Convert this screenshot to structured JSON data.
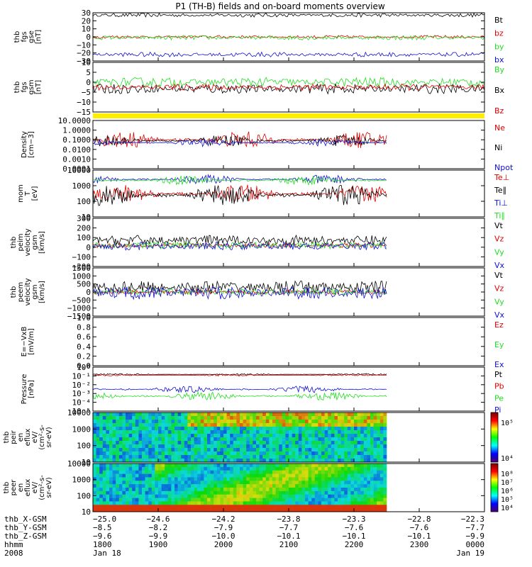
{
  "title": "P1 (TH-B) fields and on-board moments overview",
  "colors": {
    "black": "#000000",
    "red": "#e00000",
    "green": "#22dd22",
    "blue": "#1010d0",
    "yellow": "#ffee00"
  },
  "chart_data": [
    {
      "type": "line",
      "id": "p1",
      "ylabel": [
        "thb",
        "fgs",
        "gse",
        "[nT]"
      ],
      "yticks": [
        "30",
        "20",
        "10",
        "0",
        "−10",
        "−20",
        "−30"
      ],
      "ylim": [
        -30,
        30
      ],
      "series": [
        {
          "name": "Bt",
          "color": "black",
          "base": 27,
          "amp": 2.5
        },
        {
          "name": "bz",
          "color": "red",
          "base": 0,
          "amp": 2
        },
        {
          "name": "by",
          "color": "green",
          "base": -1,
          "amp": 3
        },
        {
          "name": "bx",
          "color": "blue",
          "base": -22,
          "amp": 3
        }
      ]
    },
    {
      "type": "line",
      "id": "p2",
      "ylabel": [
        "thb",
        "fgs",
        "gsm",
        "[nT]"
      ],
      "yticks": [
        "10",
        "5",
        "0",
        "−5",
        "−10",
        "−15"
      ],
      "ylim": [
        -18,
        12
      ],
      "series": [
        {
          "name": "By",
          "color": "green",
          "base": 0,
          "amp": 3
        },
        {
          "name": "Bx",
          "color": "black",
          "base": -4,
          "amp": 3
        },
        {
          "name": "Bz",
          "color": "red",
          "base": -3,
          "amp": 2
        }
      ]
    },
    {
      "type": "line",
      "id": "p3",
      "log": true,
      "ylabel": [
        "Density",
        "[cm−3]"
      ],
      "yticks": [
        "10.0000",
        "1.0000",
        "0.1000",
        "0.0100",
        "0.0010",
        "0.0001"
      ],
      "ylim": [
        0.0001,
        10
      ],
      "series": [
        {
          "name": "Ne",
          "color": "red",
          "base": 0.1,
          "amp": 0.9
        },
        {
          "name": "Ni",
          "color": "black",
          "base": 0.08,
          "amp": 0.6
        },
        {
          "name": "Npot",
          "color": "blue",
          "base": 0.05,
          "amp": 0.4
        }
      ]
    },
    {
      "type": "line",
      "id": "p4",
      "log": true,
      "ylabel": [
        "mom",
        "T",
        "[eV]"
      ],
      "yticks": [
        "10000",
        "1000",
        "100",
        "10"
      ],
      "ylim": [
        10,
        10000
      ],
      "series": [
        {
          "name": "Te⊥",
          "color": "red",
          "base": 300,
          "amp": 0.6
        },
        {
          "name": "Te∥",
          "color": "black",
          "base": 250,
          "amp": 0.7
        },
        {
          "name": "Ti⊥",
          "color": "blue",
          "base": 2500,
          "amp": 0.3
        },
        {
          "name": "Ti∥",
          "color": "green",
          "base": 2200,
          "amp": 0.3
        }
      ]
    },
    {
      "type": "line",
      "id": "p5",
      "ylabel": [
        "thb",
        "peim",
        "velocity",
        "gsm",
        "[km/s]"
      ],
      "yticks": [
        "300",
        "200",
        "100",
        "0",
        "−100",
        "−200"
      ],
      "ylim": [
        -250,
        320
      ],
      "series": [
        {
          "name": "Vt",
          "color": "black",
          "base": 60,
          "amp": 60
        },
        {
          "name": "Vz",
          "color": "red",
          "base": 0,
          "amp": 30
        },
        {
          "name": "Vy",
          "color": "green",
          "base": 0,
          "amp": 40
        },
        {
          "name": "Vx",
          "color": "blue",
          "base": -10,
          "amp": 50
        }
      ]
    },
    {
      "type": "line",
      "id": "p6",
      "ylabel": [
        "thb",
        "peem",
        "velocity",
        "gsm",
        "[km/s]"
      ],
      "yticks": [
        "1500",
        "1000",
        "500",
        "0",
        "−500",
        "−1000",
        "−1500"
      ],
      "ylim": [
        -1500,
        1500
      ],
      "series": [
        {
          "name": "Vt",
          "color": "black",
          "base": 300,
          "amp": 400
        },
        {
          "name": "Vz",
          "color": "red",
          "base": 0,
          "amp": 150
        },
        {
          "name": "Vy",
          "color": "green",
          "base": 0,
          "amp": 200
        },
        {
          "name": "Vx",
          "color": "blue",
          "base": -50,
          "amp": 400
        }
      ]
    },
    {
      "type": "line",
      "id": "p7",
      "ylabel": [
        "E=−VxB",
        "[mV/m]"
      ],
      "yticks": [
        "1.0",
        "0.8",
        "0.6",
        "0.4",
        "0.2",
        "0.0"
      ],
      "ylim": [
        0,
        1
      ],
      "series": [
        {
          "name": "Ez",
          "color": "red"
        },
        {
          "name": "Ey",
          "color": "green"
        },
        {
          "name": "Ex",
          "color": "blue"
        }
      ]
    },
    {
      "type": "line",
      "id": "p8",
      "log": true,
      "ylabel": [
        "Pressure",
        "[nPa]"
      ],
      "yticks": [
        "10⁰",
        "10⁻¹",
        "10⁻²",
        "10⁻³",
        "10⁻⁴",
        "10⁻⁵"
      ],
      "ylim": [
        1e-05,
        1
      ],
      "series": [
        {
          "name": "Pt",
          "color": "black",
          "base": 0.15,
          "amp": 0.1
        },
        {
          "name": "Pb",
          "color": "red",
          "base": 0.12,
          "amp": 0.1
        },
        {
          "name": "Pe",
          "color": "green",
          "base": 0.0005,
          "amp": 0.5
        },
        {
          "name": "Pi",
          "color": "blue",
          "base": 0.003,
          "amp": 0.4
        }
      ]
    },
    {
      "type": "heatmap",
      "id": "p9",
      "ylabel": [
        "thb",
        "peir",
        "en",
        "eflux",
        "eV/",
        "(cm²-s-",
        "sr-eV)"
      ],
      "yticks": [
        "10000",
        "1000",
        "100",
        "10"
      ],
      "colorbar_ticks": [
        "10⁵",
        "10⁴"
      ]
    },
    {
      "type": "heatmap",
      "id": "p10",
      "ylabel": [
        "thb",
        "peer",
        "en",
        "eflux",
        "eV/",
        "(cm²-s-",
        "sr-eV)"
      ],
      "yticks": [
        "10000",
        "1000",
        "100",
        "10"
      ],
      "colorbar_ticks": [
        "10⁸",
        "10⁷",
        "10⁶",
        "10⁵",
        "10⁴"
      ]
    }
  ],
  "xaxis": {
    "row_labels": [
      "thb_X-GSM",
      "thb_Y-GSM",
      "thb_Z-GSM",
      "hhmm",
      "2008"
    ],
    "columns": [
      [
        "−25.0",
        "−8.5",
        "−9.6",
        "1800",
        "Jan 18"
      ],
      [
        "−24.6",
        "−8.2",
        "−9.9",
        "1900",
        ""
      ],
      [
        "−24.2",
        "−7.9",
        "−10.0",
        "2000",
        ""
      ],
      [
        "−23.8",
        "−7.7",
        "−10.1",
        "2100",
        ""
      ],
      [
        "−23.3",
        "−7.6",
        "−10.1",
        "2200",
        ""
      ],
      [
        "−22.8",
        "−7.6",
        "−10.1",
        "2300",
        ""
      ],
      [
        "−22.3",
        "−7.7",
        "−9.9",
        "0000",
        "Jan 19"
      ]
    ]
  }
}
